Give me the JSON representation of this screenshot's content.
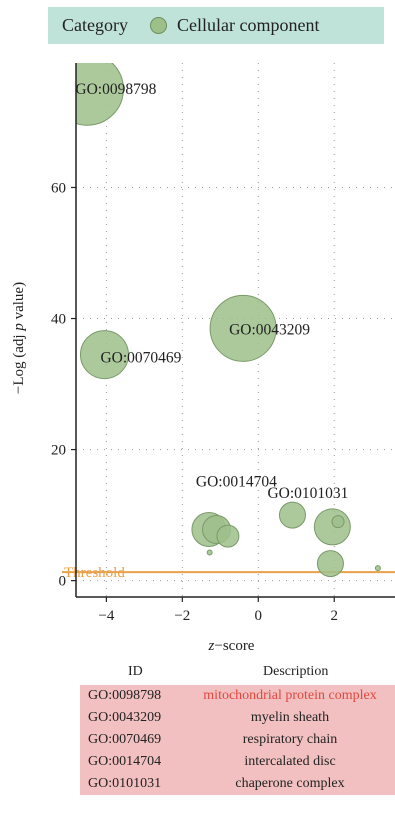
{
  "legend": {
    "label": "Category",
    "entry": "Cellular component",
    "color": "#9dc08b"
  },
  "chart_data": {
    "type": "scatter",
    "xlabel_prefix": "z",
    "xlabel_suffix": "−score",
    "ylabel_prefix": "−Log (adj ",
    "ylabel_italic": "p",
    "ylabel_suffix": " value)",
    "xlim": [
      -4.8,
      3.6
    ],
    "ylim": [
      -2.5,
      79
    ],
    "xticks": [
      -4,
      -2,
      0,
      2
    ],
    "yticks": [
      0,
      20,
      40,
      60
    ],
    "threshold": {
      "label": "Threshold",
      "value": 1.3,
      "color": "#e8a04a"
    },
    "points": [
      {
        "x": -4.5,
        "y": 75,
        "r": 36,
        "label": "GO:0098798"
      },
      {
        "x": -0.4,
        "y": 38.5,
        "r": 33,
        "label": "GO:0043209"
      },
      {
        "x": -4.05,
        "y": 34.5,
        "r": 24,
        "label": "GO:0070469"
      },
      {
        "x": -1.3,
        "y": 7.8,
        "r": 17,
        "label": "GO:0014704"
      },
      {
        "x": -1.1,
        "y": 7.8,
        "r": 14,
        "label": ""
      },
      {
        "x": -0.8,
        "y": 6.8,
        "r": 11,
        "label": ""
      },
      {
        "x": 0.9,
        "y": 10,
        "r": 13,
        "label": "GO:0101031"
      },
      {
        "x": 1.95,
        "y": 8.2,
        "r": 18,
        "label": ""
      },
      {
        "x": 2.1,
        "y": 9,
        "r": 6,
        "label": ""
      },
      {
        "x": 1.9,
        "y": 2.6,
        "r": 13,
        "label": ""
      },
      {
        "x": -1.28,
        "y": 4.3,
        "r": 2.5,
        "label": ""
      },
      {
        "x": 3.15,
        "y": 1.9,
        "r": 2.5,
        "label": ""
      }
    ]
  },
  "table": {
    "header_id": "ID",
    "header_desc": "Description",
    "rows": [
      {
        "id": "GO:0098798",
        "desc": "mitochondrial protein complex",
        "desc_color": "#e0473e"
      },
      {
        "id": "GO:0043209",
        "desc": "myelin sheath",
        "desc_color": "#222222"
      },
      {
        "id": "GO:0070469",
        "desc": "respiratory chain",
        "desc_color": "#222222"
      },
      {
        "id": "GO:0014704",
        "desc": "intercalated disc",
        "desc_color": "#222222"
      },
      {
        "id": "GO:0101031",
        "desc": "chaperone complex",
        "desc_color": "#222222"
      }
    ]
  }
}
